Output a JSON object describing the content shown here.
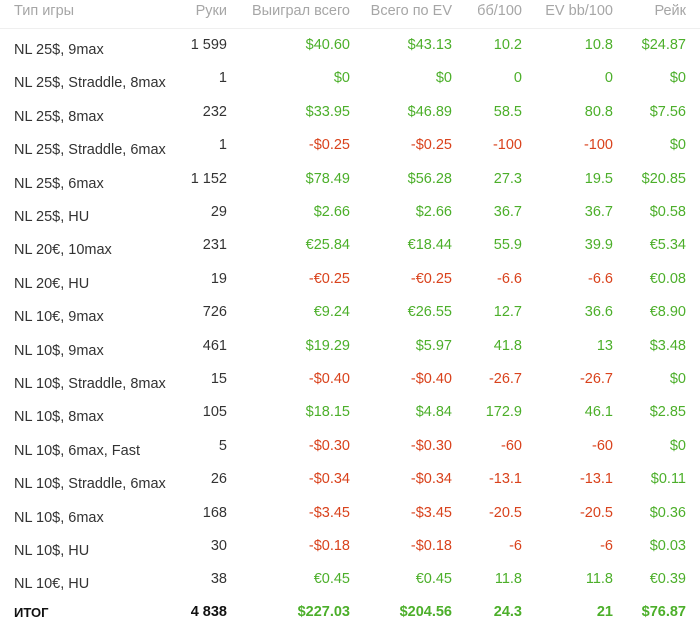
{
  "columns": {
    "game_type": "Тип игры",
    "hands": "Руки",
    "won_total": "Выиграл всего",
    "total_ev": "Всего по EV",
    "bb100": "бб/100",
    "ev_bb100": "EV bb/100",
    "rake": "Рейк"
  },
  "rows": [
    {
      "game": "NL 25$, 9max",
      "hands": "1 599",
      "won": "$40.60",
      "ev": "$43.13",
      "bb": "10.2",
      "evbb": "10.8",
      "rake": "$24.87",
      "won_s": "pos",
      "ev_s": "pos",
      "bb_s": "pos",
      "evbb_s": "pos",
      "rake_s": "pos"
    },
    {
      "game": "NL 25$, Straddle, 8max",
      "hands": "1",
      "won": "$0",
      "ev": "$0",
      "bb": "0",
      "evbb": "0",
      "rake": "$0",
      "won_s": "pos",
      "ev_s": "pos",
      "bb_s": "pos",
      "evbb_s": "pos",
      "rake_s": "pos"
    },
    {
      "game": "NL 25$, 8max",
      "hands": "232",
      "won": "$33.95",
      "ev": "$46.89",
      "bb": "58.5",
      "evbb": "80.8",
      "rake": "$7.56",
      "won_s": "pos",
      "ev_s": "pos",
      "bb_s": "pos",
      "evbb_s": "pos",
      "rake_s": "pos"
    },
    {
      "game": "NL 25$, Straddle, 6max",
      "hands": "1",
      "won": "-$0.25",
      "ev": "-$0.25",
      "bb": "-100",
      "evbb": "-100",
      "rake": "$0",
      "won_s": "neg",
      "ev_s": "neg",
      "bb_s": "neg",
      "evbb_s": "neg",
      "rake_s": "pos"
    },
    {
      "game": "NL 25$, 6max",
      "hands": "1 152",
      "won": "$78.49",
      "ev": "$56.28",
      "bb": "27.3",
      "evbb": "19.5",
      "rake": "$20.85",
      "won_s": "pos",
      "ev_s": "pos",
      "bb_s": "pos",
      "evbb_s": "pos",
      "rake_s": "pos"
    },
    {
      "game": "NL 25$, HU",
      "hands": "29",
      "won": "$2.66",
      "ev": "$2.66",
      "bb": "36.7",
      "evbb": "36.7",
      "rake": "$0.58",
      "won_s": "pos",
      "ev_s": "pos",
      "bb_s": "pos",
      "evbb_s": "pos",
      "rake_s": "pos"
    },
    {
      "game": "NL 20€, 10max",
      "hands": "231",
      "won": "€25.84",
      "ev": "€18.44",
      "bb": "55.9",
      "evbb": "39.9",
      "rake": "€5.34",
      "won_s": "pos",
      "ev_s": "pos",
      "bb_s": "pos",
      "evbb_s": "pos",
      "rake_s": "pos"
    },
    {
      "game": "NL 20€, HU",
      "hands": "19",
      "won": "-€0.25",
      "ev": "-€0.25",
      "bb": "-6.6",
      "evbb": "-6.6",
      "rake": "€0.08",
      "won_s": "neg",
      "ev_s": "neg",
      "bb_s": "neg",
      "evbb_s": "neg",
      "rake_s": "pos"
    },
    {
      "game": "NL 10€, 9max",
      "hands": "726",
      "won": "€9.24",
      "ev": "€26.55",
      "bb": "12.7",
      "evbb": "36.6",
      "rake": "€8.90",
      "won_s": "pos",
      "ev_s": "pos",
      "bb_s": "pos",
      "evbb_s": "pos",
      "rake_s": "pos"
    },
    {
      "game": "NL 10$, 9max",
      "hands": "461",
      "won": "$19.29",
      "ev": "$5.97",
      "bb": "41.8",
      "evbb": "13",
      "rake": "$3.48",
      "won_s": "pos",
      "ev_s": "pos",
      "bb_s": "pos",
      "evbb_s": "pos",
      "rake_s": "pos"
    },
    {
      "game": "NL 10$, Straddle, 8max",
      "hands": "15",
      "won": "-$0.40",
      "ev": "-$0.40",
      "bb": "-26.7",
      "evbb": "-26.7",
      "rake": "$0",
      "won_s": "neg",
      "ev_s": "neg",
      "bb_s": "neg",
      "evbb_s": "neg",
      "rake_s": "pos"
    },
    {
      "game": "NL 10$, 8max",
      "hands": "105",
      "won": "$18.15",
      "ev": "$4.84",
      "bb": "172.9",
      "evbb": "46.1",
      "rake": "$2.85",
      "won_s": "pos",
      "ev_s": "pos",
      "bb_s": "pos",
      "evbb_s": "pos",
      "rake_s": "pos"
    },
    {
      "game": "NL 10$, 6max, Fast",
      "hands": "5",
      "won": "-$0.30",
      "ev": "-$0.30",
      "bb": "-60",
      "evbb": "-60",
      "rake": "$0",
      "won_s": "neg",
      "ev_s": "neg",
      "bb_s": "neg",
      "evbb_s": "neg",
      "rake_s": "pos"
    },
    {
      "game": "NL 10$, Straddle, 6max",
      "hands": "26",
      "won": "-$0.34",
      "ev": "-$0.34",
      "bb": "-13.1",
      "evbb": "-13.1",
      "rake": "$0.11",
      "won_s": "neg",
      "ev_s": "neg",
      "bb_s": "neg",
      "evbb_s": "neg",
      "rake_s": "pos"
    },
    {
      "game": "NL 10$, 6max",
      "hands": "168",
      "won": "-$3.45",
      "ev": "-$3.45",
      "bb": "-20.5",
      "evbb": "-20.5",
      "rake": "$0.36",
      "won_s": "neg",
      "ev_s": "neg",
      "bb_s": "neg",
      "evbb_s": "neg",
      "rake_s": "pos"
    },
    {
      "game": "NL 10$, HU",
      "hands": "30",
      "won": "-$0.18",
      "ev": "-$0.18",
      "bb": "-6",
      "evbb": "-6",
      "rake": "$0.03",
      "won_s": "neg",
      "ev_s": "neg",
      "bb_s": "neg",
      "evbb_s": "neg",
      "rake_s": "pos"
    },
    {
      "game": "NL 10€, HU",
      "hands": "38",
      "won": "€0.45",
      "ev": "€0.45",
      "bb": "11.8",
      "evbb": "11.8",
      "rake": "€0.39",
      "won_s": "pos",
      "ev_s": "pos",
      "bb_s": "pos",
      "evbb_s": "pos",
      "rake_s": "pos"
    }
  ],
  "total": {
    "label": "ИТОГ",
    "hands": "4 838",
    "won": "$227.03",
    "ev": "$204.56",
    "bb": "24.3",
    "evbb": "21",
    "rake": "$76.87"
  },
  "colors": {
    "positive": "#4caf2a",
    "negative": "#d9421c",
    "header_text": "#a6a6a6",
    "body_text": "#333333"
  }
}
